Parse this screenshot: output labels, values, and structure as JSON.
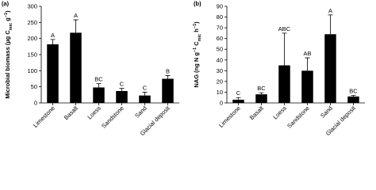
{
  "chart_data": [
    {
      "type": "bar",
      "panel": "(a)",
      "ylabel": [
        "Microbial biomass (µg C",
        {
          "sub": "mic"
        },
        " g",
        {
          "sup": "−1"
        },
        ")"
      ],
      "categories": [
        "Limestone",
        "Basalt",
        "Loess",
        "Sandstone",
        "Sand",
        "Glacial deposit"
      ],
      "values": [
        182,
        218,
        48,
        37,
        23,
        75
      ],
      "errors": [
        15,
        40,
        12,
        8,
        10,
        10
      ],
      "letters": [
        "A",
        "A",
        "BC",
        "C",
        "C",
        "B"
      ],
      "color": "#000000",
      "ylim": [
        0,
        300
      ],
      "yticks": [
        0,
        50,
        100,
        150,
        200,
        250,
        300
      ]
    },
    {
      "type": "bar",
      "panel": "(b)",
      "ylabel": [
        "NAG (ng N g",
        {
          "sup": "−1"
        },
        " C",
        {
          "sub": "mic"
        },
        " h",
        {
          "sup": "−1"
        },
        ")"
      ],
      "categories": [
        "Limestone",
        "Basalt",
        "Loess",
        "Sandstone",
        "Sand",
        "Glacial deposit"
      ],
      "values": [
        3,
        8,
        35,
        30,
        64,
        6
      ],
      "errors": [
        2,
        1.5,
        30,
        12,
        18,
        1
      ],
      "letters": [
        "C",
        "BC",
        "ABC",
        "AB",
        "A",
        "BC"
      ],
      "color": "#000000",
      "ylim": [
        0,
        90
      ],
      "yticks": [
        0,
        10,
        20,
        30,
        40,
        50,
        60,
        70,
        80,
        90
      ]
    }
  ]
}
